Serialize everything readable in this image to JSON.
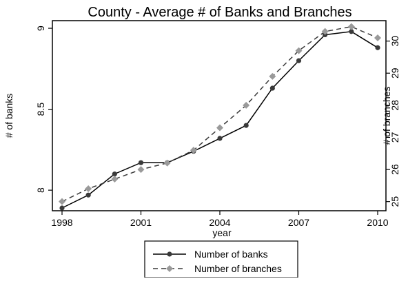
{
  "chart_data": {
    "type": "line",
    "title": "County - Average # of Banks and Branches",
    "xlabel": "year",
    "ylabel_left": "# of banks",
    "ylabel_right": "# of branches",
    "x": [
      1998,
      1999,
      2000,
      2001,
      2002,
      2003,
      2004,
      2005,
      2006,
      2007,
      2008,
      2009,
      2010
    ],
    "xlim": [
      1998,
      2010
    ],
    "x_ticks": [
      1998,
      2001,
      2004,
      2007,
      2010
    ],
    "y_left_lim": [
      7.89,
      9.03
    ],
    "y_left_ticks": [
      8,
      8.5,
      9
    ],
    "y_right_lim": [
      24.8,
      30.55
    ],
    "y_right_ticks": [
      25,
      26,
      27,
      28,
      29,
      30
    ],
    "grid": false,
    "legend_position": "bottom",
    "series": [
      {
        "name": "Number of banks",
        "axis": "left",
        "style": "solid",
        "marker": "circle",
        "color": "#3a3a3a",
        "values": [
          7.89,
          7.97,
          8.1,
          8.17,
          8.17,
          8.24,
          8.32,
          8.4,
          8.63,
          8.8,
          8.96,
          8.98,
          8.88
        ]
      },
      {
        "name": "Number of branches",
        "axis": "right",
        "style": "dashed",
        "marker": "diamond",
        "color": "#9a9a9a",
        "values": [
          25.0,
          25.4,
          25.7,
          26.0,
          26.2,
          26.6,
          27.3,
          28.0,
          28.9,
          29.7,
          30.3,
          30.45,
          30.1
        ]
      }
    ]
  }
}
